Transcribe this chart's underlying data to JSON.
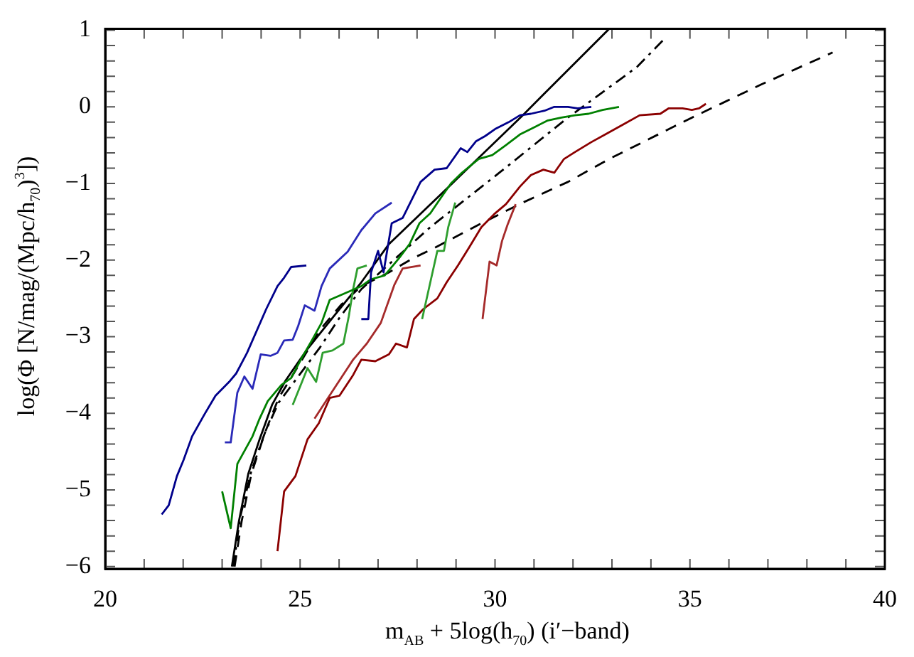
{
  "chart_data": {
    "type": "line",
    "xlabel": "m$_{AB}$ + 5log(h$_{70}$)  (i′−band)",
    "ylabel": "log(Φ [N/mag/(Mpc/h$_{70}$)$^{3}$])",
    "xlim": [
      20,
      40
    ],
    "ylim": [
      -6.03,
      1.02
    ],
    "xticks": [
      20,
      {
        "value": 21,
        "label": null
      },
      {
        "value": 22,
        "label": null
      },
      {
        "value": 23,
        "label": null
      },
      {
        "value": 24,
        "label": null
      },
      25,
      {
        "value": 26,
        "label": null
      },
      {
        "value": 27,
        "label": null
      },
      {
        "value": 28,
        "label": null
      },
      {
        "value": 29,
        "label": null
      },
      30,
      {
        "value": 31,
        "label": null
      },
      {
        "value": 32,
        "label": null
      },
      {
        "value": 33,
        "label": null
      },
      {
        "value": 34,
        "label": null
      },
      35,
      {
        "value": 36,
        "label": null
      },
      {
        "value": 37,
        "label": null
      },
      {
        "value": 38,
        "label": null
      },
      {
        "value": 39,
        "label": null
      },
      40
    ],
    "yticks": [
      -6,
      {
        "value": -5.8,
        "label": null
      },
      {
        "value": -5.6,
        "label": null
      },
      {
        "value": -5.4,
        "label": null
      },
      {
        "value": -5.2,
        "label": null
      },
      -5,
      {
        "value": -4.8,
        "label": null
      },
      {
        "value": -4.6,
        "label": null
      },
      {
        "value": -4.4,
        "label": null
      },
      {
        "value": -4.2,
        "label": null
      },
      -4,
      {
        "value": -3.8,
        "label": null
      },
      {
        "value": -3.6,
        "label": null
      },
      {
        "value": -3.4,
        "label": null
      },
      {
        "value": -3.2,
        "label": null
      },
      -3,
      {
        "value": -2.8,
        "label": null
      },
      {
        "value": -2.6,
        "label": null
      },
      {
        "value": -2.4,
        "label": null
      },
      {
        "value": -2.2,
        "label": null
      },
      -2,
      {
        "value": -1.8,
        "label": null
      },
      {
        "value": -1.6,
        "label": null
      },
      {
        "value": -1.4,
        "label": null
      },
      {
        "value": -1.2,
        "label": null
      },
      -1,
      {
        "value": -0.8,
        "label": null
      },
      {
        "value": -0.6,
        "label": null
      },
      {
        "value": -0.4,
        "label": null
      },
      {
        "value": -0.2,
        "label": null
      },
      0,
      {
        "value": 0.2,
        "label": null
      },
      {
        "value": 0.4,
        "label": null
      },
      {
        "value": 0.6,
        "label": null
      },
      {
        "value": 0.8,
        "label": null
      },
      1
    ],
    "grid": false,
    "legend": false,
    "marker": "none",
    "series": [
      {
        "color": "#00008b",
        "x": [
          21.45,
          21.63,
          21.84,
          22.01,
          22.23,
          22.54,
          22.83,
          23.18,
          23.36,
          23.64,
          24.13,
          24.42,
          24.59,
          24.77,
          25.16
        ],
        "values": [
          -5.32,
          -5.2,
          -4.82,
          -4.61,
          -4.3,
          -4.02,
          -3.77,
          -3.59,
          -3.48,
          -3.21,
          -2.64,
          -2.34,
          -2.23,
          -2.09,
          -2.07
        ]
      },
      {
        "color": "#2a2ab8",
        "x": [
          23.07,
          23.22,
          23.39,
          23.57,
          23.78,
          23.99,
          24.24,
          24.42,
          24.59,
          24.81,
          24.95,
          25.12,
          25.37,
          25.55,
          25.76,
          26.22,
          26.57,
          26.93,
          27.35
        ],
        "values": [
          -4.38,
          -4.38,
          -3.73,
          -3.52,
          -3.68,
          -3.23,
          -3.25,
          -3.21,
          -3.05,
          -3.04,
          -2.86,
          -2.59,
          -2.66,
          -2.34,
          -2.11,
          -1.89,
          -1.61,
          -1.39,
          -1.25
        ]
      },
      {
        "color": "#00008b",
        "x": [
          26.57,
          26.75,
          26.82,
          27.0,
          27.14,
          27.35,
          27.63,
          28.09,
          28.45,
          28.76,
          29.12,
          29.29,
          29.51,
          29.75,
          30.0,
          30.35,
          30.64,
          30.92,
          31.27,
          31.52,
          31.87,
          32.12,
          32.47
        ],
        "values": [
          -2.77,
          -2.77,
          -2.16,
          -1.88,
          -2.16,
          -1.52,
          -1.45,
          -0.98,
          -0.82,
          -0.8,
          -0.54,
          -0.59,
          -0.45,
          -0.38,
          -0.29,
          -0.2,
          -0.11,
          -0.09,
          -0.05,
          0,
          0,
          -0.02,
          0
        ]
      },
      {
        "color": "#008000",
        "x": [
          23.0,
          23.22,
          23.39,
          23.78,
          23.96,
          24.17,
          24.52,
          24.77,
          25.05,
          25.3,
          25.55,
          25.76,
          26.57,
          26.82,
          27.17,
          27.53,
          27.81,
          28.06,
          28.34,
          28.62,
          28.87,
          29.15,
          29.58,
          29.93,
          30.28,
          30.64,
          30.99,
          31.34,
          31.7,
          32.05,
          32.4,
          32.76,
          33.18
        ],
        "values": [
          -5.02,
          -5.5,
          -4.66,
          -4.3,
          -4.07,
          -3.84,
          -3.63,
          -3.54,
          -3.27,
          -3.05,
          -2.82,
          -2.52,
          -2.34,
          -2.25,
          -2.2,
          -1.98,
          -1.79,
          -1.52,
          -1.39,
          -1.18,
          -1.0,
          -0.86,
          -0.68,
          -0.63,
          -0.5,
          -0.36,
          -0.27,
          -0.18,
          -0.14,
          -0.11,
          -0.09,
          -0.04,
          0
        ]
      },
      {
        "color": "#2e9e2e",
        "x": [
          24.81,
          25.19,
          25.41,
          25.58,
          25.83,
          26.11,
          26.25,
          26.36,
          26.47,
          26.71
        ],
        "values": [
          -3.89,
          -3.41,
          -3.59,
          -3.21,
          -3.18,
          -3.09,
          -2.73,
          -2.38,
          -2.11,
          -2.07
        ]
      },
      {
        "color": "#2e9e2e",
        "x": [
          28.13,
          28.34,
          28.52,
          28.69,
          28.8,
          28.98
        ],
        "values": [
          -2.77,
          -2.29,
          -1.88,
          -1.88,
          -1.57,
          -1.25
        ]
      },
      {
        "color": "#8b0000",
        "x": [
          24.42,
          24.59,
          24.88,
          25.19,
          25.48,
          25.76,
          26.01,
          26.36,
          26.57,
          26.93,
          27.28,
          27.46,
          27.74,
          27.92,
          28.16,
          28.52,
          28.76,
          29.05,
          29.33,
          29.65,
          30.0,
          30.28,
          30.64,
          30.92,
          31.24,
          31.52,
          31.77,
          32.05,
          32.47,
          32.83,
          33.29,
          33.71,
          34.24,
          34.45,
          34.81,
          35.05,
          35.23,
          35.41
        ],
        "values": [
          -5.8,
          -5.02,
          -4.82,
          -4.34,
          -4.13,
          -3.8,
          -3.77,
          -3.5,
          -3.3,
          -3.32,
          -3.23,
          -3.09,
          -3.14,
          -2.77,
          -2.64,
          -2.5,
          -2.29,
          -2.07,
          -1.84,
          -1.57,
          -1.39,
          -1.27,
          -1.04,
          -0.89,
          -0.82,
          -0.86,
          -0.68,
          -0.59,
          -0.46,
          -0.36,
          -0.23,
          -0.11,
          -0.09,
          -0.02,
          -0.02,
          -0.04,
          -0.02,
          0.04
        ]
      },
      {
        "color": "#a52a2a",
        "x": [
          25.37,
          25.87,
          26.36,
          26.71,
          27.07,
          27.42,
          27.63,
          28.09
        ],
        "values": [
          -4.07,
          -3.68,
          -3.3,
          -3.09,
          -2.82,
          -2.32,
          -2.11,
          -2.07
        ]
      },
      {
        "color": "#a52a2a",
        "x": [
          29.68,
          29.86,
          30.04,
          30.18,
          30.32,
          30.53
        ],
        "values": [
          -2.77,
          -2.02,
          -2.07,
          -1.75,
          -1.54,
          -1.27
        ]
      },
      {
        "color": "#000000",
        "line_style": "solid",
        "x": [
          23.25,
          23.43,
          23.67,
          23.96,
          24.28,
          24.63,
          25.16,
          25.87,
          26.57,
          27.28,
          28.94,
          30.71,
          32.93
        ],
        "values": [
          -6.0,
          -5.41,
          -4.79,
          -4.34,
          -3.89,
          -3.57,
          -3.18,
          -2.73,
          -2.29,
          -1.79,
          -0.98,
          -0.11,
          1.02
        ]
      },
      {
        "color": "#000000",
        "line_style": "dashdot",
        "x": [
          23.29,
          23.46,
          23.75,
          24.1,
          24.45,
          24.98,
          25.51,
          26.04,
          26.57,
          28.34,
          30.11,
          31.87,
          33.64,
          34.35
        ],
        "values": [
          -6.0,
          -5.36,
          -4.75,
          -4.25,
          -3.86,
          -3.5,
          -3.14,
          -2.73,
          -2.38,
          -1.57,
          -0.86,
          -0.14,
          0.52,
          0.89
        ]
      },
      {
        "color": "#000000",
        "line_style": "dashed",
        "x": [
          23.32,
          23.5,
          23.75,
          24.1,
          24.45,
          24.98,
          25.51,
          26.04,
          26.57,
          27.28,
          27.88,
          28.45,
          29.65,
          30.71,
          31.87,
          32.93,
          35.05,
          36.82,
          38.66
        ],
        "values": [
          -6.0,
          -5.41,
          -4.79,
          -4.25,
          -3.8,
          -3.36,
          -2.91,
          -2.59,
          -2.34,
          -2.16,
          -1.98,
          -1.84,
          -1.52,
          -1.25,
          -0.98,
          -0.68,
          -0.14,
          0.29,
          0.71
        ]
      }
    ]
  }
}
